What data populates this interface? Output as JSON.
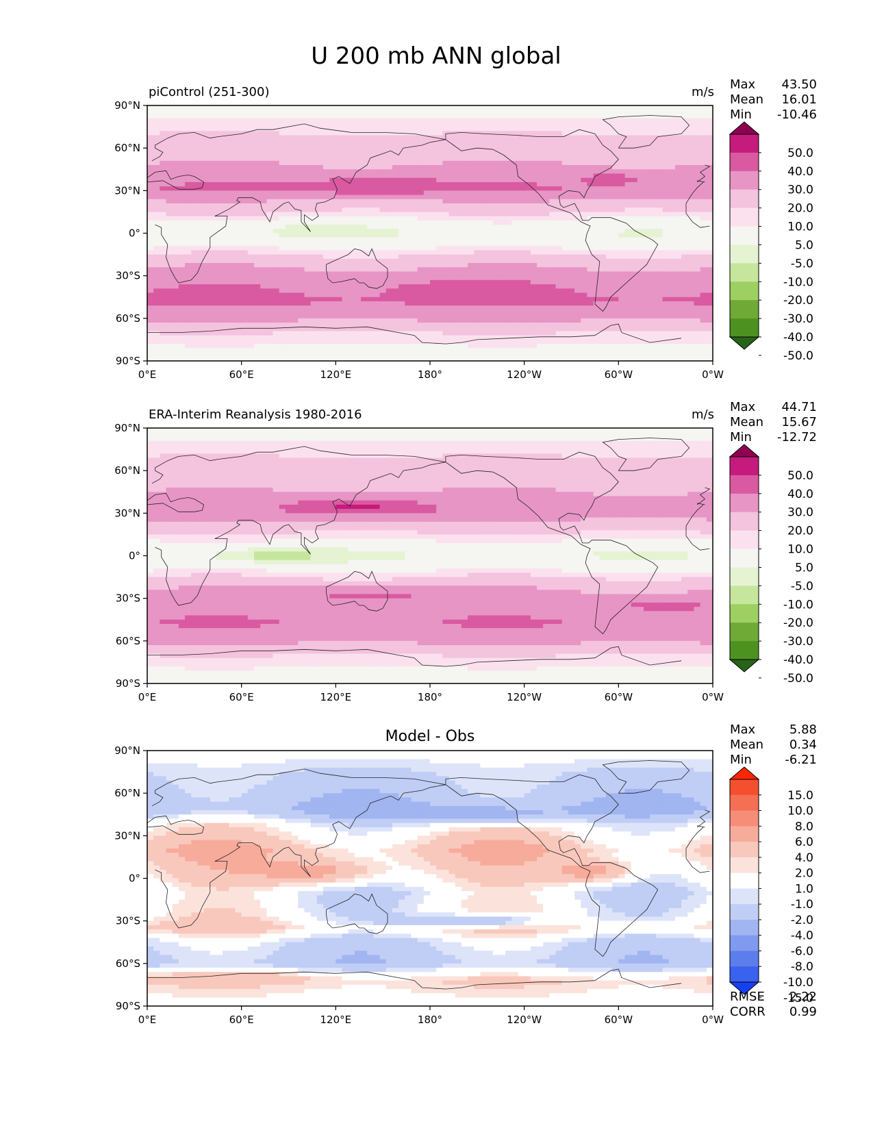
{
  "figure": {
    "title": "U 200 mb ANN global"
  },
  "chart_data": [
    {
      "type": "heatmap",
      "title_left": "piControl (251-300)",
      "units": "m/s",
      "xticks": [
        "0°E",
        "60°E",
        "120°E",
        "180°",
        "120°W",
        "60°W",
        "0°W"
      ],
      "yticks": [
        "90°N",
        "60°N",
        "30°N",
        "0°",
        "30°S",
        "60°S",
        "90°S"
      ],
      "xlim": [
        0,
        360
      ],
      "ylim": [
        -90,
        90
      ],
      "stats": [
        {
          "label": "Max",
          "value": "43.50"
        },
        {
          "label": "Mean",
          "value": "16.01"
        },
        {
          "label": "Min",
          "value": "-10.46"
        }
      ],
      "colorbar": {
        "levels": [
          "50.0",
          "40.0",
          "30.0",
          "20.0",
          "10.0",
          "5.0",
          "-5.0",
          "-10.0",
          "-20.0",
          "-30.0",
          "-40.0",
          "-50.0"
        ],
        "colors": [
          "#8e0152",
          "#c51b7d",
          "#d95aa1",
          "#e795c5",
          "#f4c3de",
          "#fbe1ee",
          "#f5f5f2",
          "#e6f3d3",
          "#c7e69d",
          "#9dcf63",
          "#6faa36",
          "#4d9221",
          "#276419"
        ]
      },
      "bands": [
        {
          "lat": 90,
          "value": 0
        },
        {
          "lat": 75,
          "value": 8
        },
        {
          "lat": 60,
          "value": 14
        },
        {
          "lat": 45,
          "value": 22
        },
        {
          "lat": 32,
          "value": 30
        },
        {
          "lat": 20,
          "value": 16
        },
        {
          "lat": 8,
          "value": 3
        },
        {
          "lat": 0,
          "value": -4
        },
        {
          "lat": -10,
          "value": 4
        },
        {
          "lat": -22,
          "value": 18
        },
        {
          "lat": -35,
          "value": 28
        },
        {
          "lat": -48,
          "value": 32
        },
        {
          "lat": -60,
          "value": 22
        },
        {
          "lat": -72,
          "value": 8
        },
        {
          "lat": -90,
          "value": 0
        }
      ],
      "blobs": [
        {
          "lon": 145,
          "lat": 33,
          "wlon": 45,
          "wlat": 6,
          "value": 38
        },
        {
          "lon": 295,
          "lat": 38,
          "wlon": 20,
          "wlat": 4,
          "value": 36
        },
        {
          "lon": 110,
          "lat": 2,
          "wlon": 40,
          "wlat": 6,
          "value": -8
        },
        {
          "lon": 200,
          "lat": -40,
          "wlon": 45,
          "wlat": 6,
          "value": 34
        }
      ]
    },
    {
      "type": "heatmap",
      "title_left": "ERA-Interim Reanalysis 1980-2016",
      "units": "m/s",
      "xticks": [
        "0°E",
        "60°E",
        "120°E",
        "180°",
        "120°W",
        "60°W",
        "0°W"
      ],
      "yticks": [
        "90°N",
        "60°N",
        "30°N",
        "0°",
        "30°S",
        "60°S",
        "90°S"
      ],
      "xlim": [
        0,
        360
      ],
      "ylim": [
        -90,
        90
      ],
      "stats": [
        {
          "label": "Max",
          "value": "44.71"
        },
        {
          "label": "Mean",
          "value": "15.67"
        },
        {
          "label": "Min",
          "value": "-12.72"
        }
      ],
      "colorbar": {
        "levels": [
          "50.0",
          "40.0",
          "30.0",
          "20.0",
          "10.0",
          "5.0",
          "-5.0",
          "-10.0",
          "-20.0",
          "-30.0",
          "-40.0",
          "-50.0"
        ],
        "colors": [
          "#8e0152",
          "#c51b7d",
          "#d95aa1",
          "#e795c5",
          "#f4c3de",
          "#fbe1ee",
          "#f5f5f2",
          "#e6f3d3",
          "#c7e69d",
          "#9dcf63",
          "#6faa36",
          "#4d9221",
          "#276419"
        ]
      },
      "bands": [
        {
          "lat": 90,
          "value": 0
        },
        {
          "lat": 75,
          "value": 8
        },
        {
          "lat": 60,
          "value": 14
        },
        {
          "lat": 45,
          "value": 20
        },
        {
          "lat": 32,
          "value": 28
        },
        {
          "lat": 20,
          "value": 14
        },
        {
          "lat": 8,
          "value": 2
        },
        {
          "lat": 0,
          "value": -5
        },
        {
          "lat": -10,
          "value": 4
        },
        {
          "lat": -22,
          "value": 18
        },
        {
          "lat": -35,
          "value": 26
        },
        {
          "lat": -48,
          "value": 30
        },
        {
          "lat": -60,
          "value": 22
        },
        {
          "lat": -72,
          "value": 8
        },
        {
          "lat": -90,
          "value": 0
        }
      ],
      "blobs": [
        {
          "lon": 135,
          "lat": 35,
          "wlon": 40,
          "wlat": 6,
          "value": 42
        },
        {
          "lon": 85,
          "lat": 0,
          "wlon": 40,
          "wlat": 6,
          "value": -12
        },
        {
          "lon": 140,
          "lat": -28,
          "wlon": 60,
          "wlat": 5,
          "value": 32
        },
        {
          "lon": 330,
          "lat": -35,
          "wlon": 40,
          "wlat": 6,
          "value": 32
        }
      ]
    },
    {
      "type": "heatmap",
      "title_center": "Model - Obs",
      "xticks": [
        "0°E",
        "60°E",
        "120°E",
        "180°",
        "120°W",
        "60°W",
        "0°W"
      ],
      "yticks": [
        "90°N",
        "60°N",
        "30°N",
        "0°",
        "30°S",
        "60°S",
        "90°S"
      ],
      "xlim": [
        0,
        360
      ],
      "ylim": [
        -90,
        90
      ],
      "stats": [
        {
          "label": "Max",
          "value": "5.88"
        },
        {
          "label": "Mean",
          "value": "0.34"
        },
        {
          "label": "Min",
          "value": "-6.21"
        }
      ],
      "bottom_stats": [
        {
          "label": "RMSE",
          "value": "2.22"
        },
        {
          "label": "CORR",
          "value": "0.99"
        }
      ],
      "colorbar": {
        "levels": [
          "15.0",
          "10.0",
          "8.0",
          "6.0",
          "4.0",
          "2.0",
          "1.0",
          "-1.0",
          "-2.0",
          "-4.0",
          "-6.0",
          "-8.0",
          "-10.0",
          "-15.0"
        ],
        "colors": [
          "#ff2600",
          "#f4502f",
          "#f56f55",
          "#f68d78",
          "#f7ab9b",
          "#f9c8bd",
          "#fbe3dc",
          "#ffffff",
          "#dde4f9",
          "#c0cdf5",
          "#a1b5f1",
          "#7f9aee",
          "#5c7eec",
          "#3962ee",
          "#1540fa"
        ]
      },
      "bands": [
        {
          "lat": 90,
          "value": 0
        },
        {
          "lat": 75,
          "value": -2
        },
        {
          "lat": 60,
          "value": -3
        },
        {
          "lat": 48,
          "value": -4
        },
        {
          "lat": 38,
          "value": 0
        },
        {
          "lat": 20,
          "value": 3
        },
        {
          "lat": 5,
          "value": 1
        },
        {
          "lat": -10,
          "value": -1
        },
        {
          "lat": -25,
          "value": 0
        },
        {
          "lat": -35,
          "value": 2
        },
        {
          "lat": -45,
          "value": -2
        },
        {
          "lat": -60,
          "value": -3
        },
        {
          "lat": -72,
          "value": 2
        },
        {
          "lat": -90,
          "value": 0
        }
      ],
      "blobs": [
        {
          "lon": 200,
          "lat": 45,
          "wlon": 60,
          "wlat": 6,
          "value": -6
        },
        {
          "lon": 100,
          "lat": 5,
          "wlon": 50,
          "wlat": 10,
          "value": 5
        },
        {
          "lon": 280,
          "lat": 5,
          "wlon": 30,
          "wlat": 8,
          "value": 5
        },
        {
          "lon": 200,
          "lat": -30,
          "wlon": 60,
          "wlat": 5,
          "value": -4
        },
        {
          "lon": 50,
          "lat": -70,
          "wlon": 50,
          "wlat": 4,
          "value": 4
        }
      ]
    }
  ]
}
